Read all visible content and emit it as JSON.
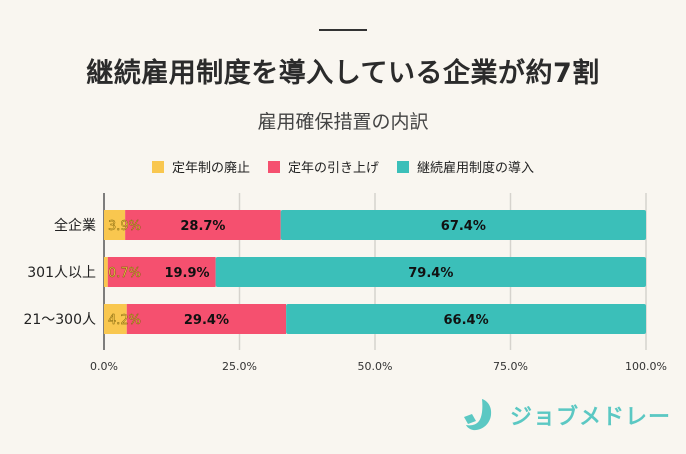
{
  "header": {
    "title": "継続雇用制度を導入している企業が約7割",
    "subtitle": "雇用確保措置の内訳"
  },
  "logo": {
    "text": "ジョブメドレー"
  },
  "chart_data": {
    "type": "bar",
    "orientation": "horizontal",
    "stacked": true,
    "title": "継続雇用制度を導入している企業が約7割",
    "subtitle": "雇用確保措置の内訳",
    "xlabel": "",
    "ylabel": "",
    "xlim": [
      0,
      100
    ],
    "grid": true,
    "legend_position": "top",
    "categories": [
      "全企業",
      "301人以上",
      "21～300人"
    ],
    "x_ticks": [
      0,
      25,
      50,
      75,
      100
    ],
    "x_tick_labels": [
      "0.0%",
      "25.0%",
      "50.0%",
      "75.0%",
      "100.0%"
    ],
    "series": [
      {
        "name": "定年制の廃止",
        "color": "#f9c74f",
        "values": [
          3.9,
          0.7,
          4.2
        ],
        "labels": [
          "3.9%",
          "0.7%",
          "4.2%"
        ]
      },
      {
        "name": "定年の引き上げ",
        "color": "#f5506f",
        "values": [
          28.7,
          19.9,
          29.4
        ],
        "labels": [
          "28.7%",
          "19.9%",
          "29.4%"
        ]
      },
      {
        "name": "継続雇用制度の導入",
        "color": "#3bbfb9",
        "values": [
          67.4,
          79.4,
          66.4
        ],
        "labels": [
          "67.4%",
          "79.4%",
          "66.4%"
        ]
      }
    ]
  }
}
